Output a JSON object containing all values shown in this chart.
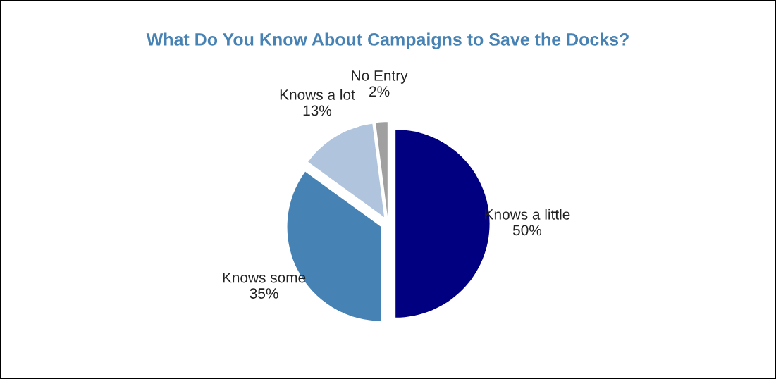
{
  "chart_data": {
    "type": "pie",
    "title": "What Do You Know About Campaigns to Save the Docks?",
    "categories": [
      "Knows a little",
      "Knows some",
      "Knows a lot",
      "No Entry"
    ],
    "values": [
      50,
      35,
      13,
      2
    ],
    "value_labels": [
      "50%",
      "35%",
      "13%",
      "2%"
    ],
    "colors": [
      "#000080",
      "#4682b4",
      "#b0c4de",
      "#a0a0a0"
    ]
  }
}
